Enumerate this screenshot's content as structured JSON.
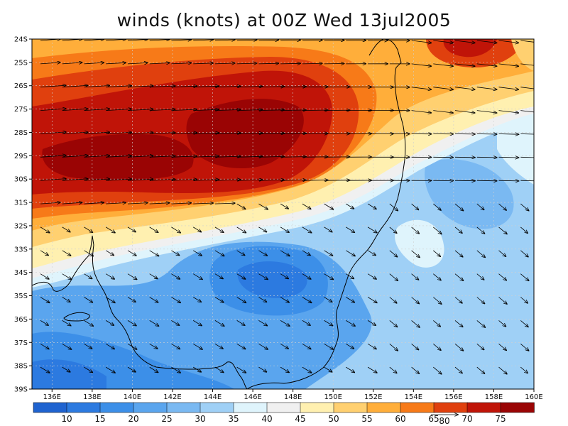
{
  "title": "winds (knots) at 00Z Wed 13jul2005",
  "lat_labels": [
    "24S",
    "25S",
    "26S",
    "27S",
    "28S",
    "29S",
    "30S",
    "31S",
    "32S",
    "33S",
    "34S",
    "35S",
    "36S",
    "37S",
    "38S",
    "39S"
  ],
  "lon_labels": [
    "136E",
    "138E",
    "140E",
    "142E",
    "144E",
    "146E",
    "148E",
    "150E",
    "152E",
    "154E",
    "156E",
    "158E",
    "160E"
  ],
  "colorbar": {
    "labels": [
      "10",
      "15",
      "20",
      "25",
      "30",
      "35",
      "40",
      "45",
      "50",
      "55",
      "60",
      "65",
      "70",
      "75"
    ],
    "colors": [
      "#1f63d0",
      "#2c7ae0",
      "#3c8fe8",
      "#5aa5ee",
      "#7ab9f2",
      "#9fd0f6",
      "#dff4fc",
      "#f0f0f0",
      "#fff0b0",
      "#ffd070",
      "#ffae3a",
      "#f77a18",
      "#e0400e",
      "#c01408",
      "#9a0404"
    ],
    "reference_vector_label": "80"
  },
  "wind_field": {
    "colors": {
      "background": "#9fd0f6",
      "coast": "#000000",
      "arrows": "#000000",
      "grid": "#cccccc"
    }
  }
}
